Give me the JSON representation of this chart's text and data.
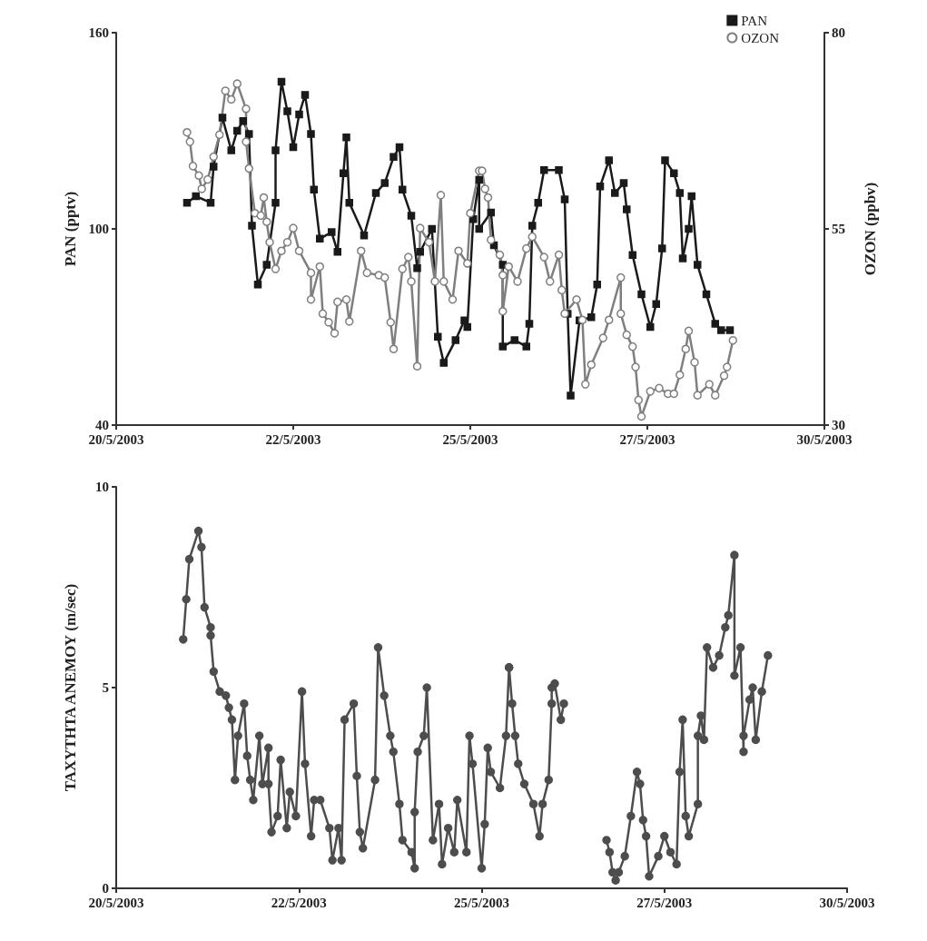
{
  "chart_data": [
    {
      "type": "line",
      "ylabel": "PAN (pptv)",
      "y2label": "OZON (ppbv)",
      "xlim": [
        "2003-05-20",
        "2003-05-30"
      ],
      "xticks": [
        {
          "value": "2003-05-20",
          "label": "20/5/2003"
        },
        {
          "value": "2003-05-22T12:00",
          "label": "22/5/2003"
        },
        {
          "value": "2003-05-25",
          "label": "25/5/2003"
        },
        {
          "value": "2003-05-27T12:00",
          "label": "27/5/2003"
        },
        {
          "value": "2003-05-30",
          "label": "30/5/2003"
        }
      ],
      "ylim": [
        40,
        160
      ],
      "yticks": [
        40,
        100,
        160
      ],
      "y2lim": [
        30,
        80
      ],
      "y2ticks": [
        30,
        55,
        80
      ],
      "grid": false,
      "legend": "top right",
      "line_style": "solid",
      "series": [
        {
          "name": "PAN",
          "color": "#1a1a1a",
          "marker": "square",
          "x": [
            "2003-05-21T00:00",
            "2003-05-21T03:00",
            "2003-05-21T08:00",
            "2003-05-21T09:00",
            "2003-05-21T12:00",
            "2003-05-21T15:00",
            "2003-05-21T17:00",
            "2003-05-21T19:00",
            "2003-05-21T21:00",
            "2003-05-21T22:00",
            "2003-05-22T00:00",
            "2003-05-22T03:00",
            "2003-05-22T06:00",
            "2003-05-22T06:00",
            "2003-05-22T08:00",
            "2003-05-22T10:00",
            "2003-05-22T12:00",
            "2003-05-22T14:00",
            "2003-05-22T16:00",
            "2003-05-22T18:00",
            "2003-05-22T19:00",
            "2003-05-22T21:00",
            "2003-05-23T01:00",
            "2003-05-23T03:00",
            "2003-05-23T05:00",
            "2003-05-23T06:00",
            "2003-05-23T07:00",
            "2003-05-23T12:00",
            "2003-05-23T16:00",
            "2003-05-23T19:00",
            "2003-05-23T22:00",
            "2003-05-24T00:00",
            "2003-05-24T01:00",
            "2003-05-24T04:00",
            "2003-05-24T06:00",
            "2003-05-24T07:00",
            "2003-05-24T11:00",
            "2003-05-24T13:00",
            "2003-05-24T15:00",
            "2003-05-24T19:00",
            "2003-05-24T22:00",
            "2003-05-24T23:00",
            "2003-05-25T01:00",
            "2003-05-25T03:00",
            "2003-05-25T03:00",
            "2003-05-25T07:00",
            "2003-05-25T08:00",
            "2003-05-25T11:00",
            "2003-05-25T11:00",
            "2003-05-25T15:00",
            "2003-05-25T19:00",
            "2003-05-25T20:00",
            "2003-05-25T21:00",
            "2003-05-25T23:00",
            "2003-05-26T01:00",
            "2003-05-26T06:00",
            "2003-05-26T08:00",
            "2003-05-26T09:00",
            "2003-05-26T10:00",
            "2003-05-26T13:00",
            "2003-05-26T17:00",
            "2003-05-26T19:00",
            "2003-05-26T20:00",
            "2003-05-26T23:00",
            "2003-05-27T01:00",
            "2003-05-27T04:00",
            "2003-05-27T05:00",
            "2003-05-27T07:00",
            "2003-05-27T10:00",
            "2003-05-27T13:00",
            "2003-05-27T15:00",
            "2003-05-27T17:00",
            "2003-05-27T18:00",
            "2003-05-27T21:00",
            "2003-05-27T23:00",
            "2003-05-28T00:00",
            "2003-05-28T02:00",
            "2003-05-28T03:00",
            "2003-05-28T05:00",
            "2003-05-28T08:00",
            "2003-05-28T11:00",
            "2003-05-28T13:00",
            "2003-05-28T16:00"
          ],
          "values": [
            108,
            110,
            108,
            119,
            134,
            124,
            130,
            133,
            129,
            101,
            83,
            89,
            108,
            124,
            145,
            136,
            125,
            135,
            141,
            129,
            112,
            97,
            99,
            93,
            117,
            128,
            108,
            98,
            111,
            114,
            122,
            125,
            112,
            104,
            88,
            93,
            100,
            67,
            59,
            66,
            72,
            70,
            103,
            115,
            100,
            105,
            95,
            89,
            64,
            66,
            64,
            71,
            101,
            108,
            118,
            118,
            109,
            74,
            49,
            72,
            73,
            83,
            113,
            121,
            111,
            114,
            106,
            92,
            80,
            70,
            77,
            94,
            121,
            117,
            111,
            91,
            100,
            110,
            89,
            80,
            71,
            69,
            69
          ]
        },
        {
          "name": "OZON",
          "color": "#7f7f7f",
          "marker": "circle",
          "axis": "y2",
          "x": [
            "2003-05-21T00:00",
            "2003-05-21T01:00",
            "2003-05-21T02:00",
            "2003-05-21T04:00",
            "2003-05-21T05:00",
            "2003-05-21T07:00",
            "2003-05-21T09:00",
            "2003-05-21T11:00",
            "2003-05-21T13:00",
            "2003-05-21T15:00",
            "2003-05-21T17:00",
            "2003-05-21T20:00",
            "2003-05-21T20:00",
            "2003-05-21T21:00",
            "2003-05-21T23:00",
            "2003-05-22T01:00",
            "2003-05-22T02:00",
            "2003-05-22T03:00",
            "2003-05-22T04:00",
            "2003-05-22T06:00",
            "2003-05-22T08:00",
            "2003-05-22T10:00",
            "2003-05-22T12:00",
            "2003-05-22T14:00",
            "2003-05-22T18:00",
            "2003-05-22T18:00",
            "2003-05-22T21:00",
            "2003-05-22T22:00",
            "2003-05-23T00:00",
            "2003-05-23T02:00",
            "2003-05-23T03:00",
            "2003-05-23T06:00",
            "2003-05-23T07:00",
            "2003-05-23T11:00",
            "2003-05-23T13:00",
            "2003-05-23T17:00",
            "2003-05-23T19:00",
            "2003-05-23T21:00",
            "2003-05-23T22:00",
            "2003-05-24T01:00",
            "2003-05-24T03:00",
            "2003-05-24T04:00",
            "2003-05-24T06:00",
            "2003-05-24T07:00",
            "2003-05-24T10:00",
            "2003-05-24T12:00",
            "2003-05-24T14:00",
            "2003-05-24T15:00",
            "2003-05-24T18:00",
            "2003-05-24T20:00",
            "2003-05-24T23:00",
            "2003-05-25T00:00",
            "2003-05-25T03:00",
            "2003-05-25T04:00",
            "2003-05-25T05:00",
            "2003-05-25T06:00",
            "2003-05-25T07:00",
            "2003-05-25T10:00",
            "2003-05-25T11:00",
            "2003-05-25T11:00",
            "2003-05-25T13:00",
            "2003-05-25T16:00",
            "2003-05-25T19:00",
            "2003-05-25T21:00",
            "2003-05-26T01:00",
            "2003-05-26T03:00",
            "2003-05-26T06:00",
            "2003-05-26T07:00",
            "2003-05-26T08:00",
            "2003-05-26T12:00",
            "2003-05-26T14:00",
            "2003-05-26T15:00",
            "2003-05-26T17:00",
            "2003-05-26T21:00",
            "2003-05-26T23:00",
            "2003-05-27T03:00",
            "2003-05-27T03:00",
            "2003-05-27T05:00",
            "2003-05-27T07:00",
            "2003-05-27T08:00",
            "2003-05-27T09:00",
            "2003-05-27T10:00",
            "2003-05-27T13:00",
            "2003-05-27T16:00",
            "2003-05-27T19:00",
            "2003-05-27T21:00",
            "2003-05-27T23:00",
            "2003-05-28T01:00",
            "2003-05-28T02:00",
            "2003-05-28T04:00",
            "2003-05-28T05:00",
            "2003-05-28T09:00",
            "2003-05-28T11:00",
            "2003-05-28T14:00",
            "2003-05-28T15:00",
            "2003-05-28T17:00"
          ],
          "values": [
            67.3,
            66.1,
            63,
            61.8,
            60.1,
            61.3,
            64.2,
            67,
            72.6,
            71.5,
            73.5,
            70.3,
            66.1,
            62.7,
            57,
            56.7,
            59,
            55.9,
            53.3,
            49.9,
            52.2,
            53.3,
            55.1,
            52.2,
            49.4,
            46,
            50.2,
            44.2,
            43.1,
            41.7,
            45.7,
            46,
            43.2,
            52.2,
            49.4,
            49.1,
            48.8,
            43.1,
            39.7,
            49.9,
            51.4,
            48.3,
            37.5,
            55.1,
            53.3,
            48.3,
            59.3,
            48.3,
            46,
            52.2,
            50.6,
            57,
            62.4,
            62.4,
            60.1,
            59,
            53.6,
            51.7,
            49.1,
            44.5,
            50.2,
            48.3,
            52.5,
            54,
            51.4,
            48.3,
            51.7,
            47.2,
            44.2,
            46,
            43.4,
            35.2,
            37.7,
            41.1,
            43.4,
            48.8,
            44.2,
            41.5,
            40,
            37.4,
            33.2,
            31.1,
            34.3,
            34.7,
            34,
            34,
            36.4,
            39.7,
            42,
            38,
            33.8,
            35.2,
            33.8,
            36.3,
            37.4,
            40.8
          ]
        }
      ]
    },
    {
      "type": "line",
      "ylabel": "ΤΑΧΥΤΗΤΑ ΑΝΕΜΟΥ (m/sec)",
      "xlim": [
        "2003-05-20",
        "2003-05-30"
      ],
      "xticks": [
        {
          "value": "2003-05-20",
          "label": "20/5/2003"
        },
        {
          "value": "2003-05-22T12:00",
          "label": "22/5/2003"
        },
        {
          "value": "2003-05-25",
          "label": "25/5/2003"
        },
        {
          "value": "2003-05-27T12:00",
          "label": "27/5/2003"
        },
        {
          "value": "2003-05-30",
          "label": "30/5/2003"
        }
      ],
      "ylim": [
        0,
        10
      ],
      "yticks": [
        0,
        5,
        10
      ],
      "grid": false,
      "legend": false,
      "line_style": "solid",
      "series": [
        {
          "color": "#4d4d4d",
          "marker": "circle",
          "x": [
            "2003-05-20T22:00",
            "2003-05-20T23:00",
            "2003-05-21T00:00",
            "2003-05-21T03:00",
            "2003-05-21T04:00",
            "2003-05-21T05:00",
            "2003-05-21T07:00",
            "2003-05-21T07:00",
            "2003-05-21T08:00",
            "2003-05-21T10:00",
            "2003-05-21T12:00",
            "2003-05-21T13:00",
            "2003-05-21T14:00",
            "2003-05-21T15:00",
            "2003-05-21T16:00",
            "2003-05-21T18:00",
            "2003-05-21T19:00",
            "2003-05-21T20:00",
            "2003-05-21T21:00",
            "2003-05-21T23:00",
            "2003-05-22T00:00",
            "2003-05-22T02:00",
            "2003-05-22T02:00",
            "2003-05-22T03:00",
            "2003-05-22T05:00",
            "2003-05-22T06:00",
            "2003-05-22T08:00",
            "2003-05-22T09:00",
            "2003-05-22T11:00",
            "2003-05-22T13:00",
            "2003-05-22T14:00",
            "2003-05-22T16:00",
            "2003-05-22T17:00",
            "2003-05-22T19:00",
            "2003-05-22T22:00",
            "2003-05-22T23:00",
            "2003-05-23T01:00",
            "2003-05-23T02:00",
            "2003-05-23T03:00",
            "2003-05-23T06:00",
            "2003-05-23T07:00",
            "2003-05-23T08:00",
            "2003-05-23T09:00",
            "2003-05-23T13:00",
            "2003-05-23T14:00",
            "2003-05-23T16:00",
            "2003-05-23T18:00",
            "2003-05-23T19:00",
            "2003-05-23T21:00",
            "2003-05-23T22:00",
            "2003-05-24T01:00",
            "2003-05-24T02:00",
            "2003-05-24T02:00",
            "2003-05-24T03:00",
            "2003-05-24T05:00",
            "2003-05-24T06:00",
            "2003-05-24T08:00",
            "2003-05-24T10:00",
            "2003-05-24T11:00",
            "2003-05-24T13:00",
            "2003-05-24T15:00",
            "2003-05-24T16:00",
            "2003-05-24T19:00",
            "2003-05-24T20:00",
            "2003-05-24T21:00",
            "2003-05-25T00:00",
            "2003-05-25T01:00",
            "2003-05-25T02:00",
            "2003-05-25T03:00",
            "2003-05-25T06:00",
            "2003-05-25T08:00",
            "2003-05-25T09:00",
            "2003-05-25T09:00",
            "2003-05-25T10:00",
            "2003-05-25T11:00",
            "2003-05-25T12:00",
            "2003-05-25T14:00",
            "2003-05-25T17:00",
            "2003-05-25T19:00",
            "2003-05-25T20:00",
            "2003-05-25T22:00",
            "2003-05-25T23:00",
            "2003-05-25T23:00",
            "2003-05-26T00:00",
            "2003-05-26T02:00",
            "2003-05-26T03:00",
            "2003-05-26T10:00",
            "2003-05-26T17:00",
            "2003-05-26T18:00",
            "2003-05-26T19:00",
            "2003-05-26T20:00",
            "2003-05-26T21:00",
            "2003-05-26T23:00",
            "2003-05-27T01:00",
            "2003-05-27T03:00",
            "2003-05-27T04:00",
            "2003-05-27T05:00",
            "2003-05-27T06:00",
            "2003-05-27T07:00",
            "2003-05-27T10:00",
            "2003-05-27T12:00",
            "2003-05-27T14:00",
            "2003-05-27T16:00",
            "2003-05-27T17:00",
            "2003-05-27T18:00",
            "2003-05-27T19:00",
            "2003-05-27T20:00",
            "2003-05-27T23:00",
            "2003-05-27T23:00",
            "2003-05-28T00:00",
            "2003-05-28T01:00",
            "2003-05-28T02:00",
            "2003-05-28T04:00",
            "2003-05-28T06:00",
            "2003-05-28T08:00",
            "2003-05-28T09:00",
            "2003-05-28T11:00",
            "2003-05-28T11:00",
            "2003-05-28T13:00",
            "2003-05-28T14:00",
            "2003-05-28T14:00",
            "2003-05-28T16:00",
            "2003-05-28T17:00",
            "2003-05-28T18:00",
            "2003-05-28T20:00",
            "2003-05-28T22:00"
          ],
          "values": [
            6.2,
            7.2,
            8.2,
            8.9,
            8.5,
            7,
            6.5,
            6.3,
            5.4,
            4.9,
            4.8,
            4.5,
            4.2,
            2.7,
            3.8,
            4.6,
            3.3,
            2.7,
            2.2,
            3.8,
            2.6,
            3.5,
            2.6,
            1.4,
            1.8,
            3.2,
            1.5,
            2.4,
            1.8,
            4.9,
            3.1,
            1.3,
            2.2,
            2.2,
            1.5,
            0.7,
            1.5,
            0.7,
            4.2,
            4.6,
            2.8,
            1.4,
            1,
            2.7,
            6,
            4.8,
            3.8,
            3.4,
            2.1,
            1.2,
            0.9,
            0.5,
            1.9,
            3.4,
            3.8,
            5,
            1.2,
            2.1,
            0.6,
            1.5,
            0.9,
            2.2,
            0.9,
            3.8,
            3.1,
            0.5,
            1.6,
            3.5,
            2.9,
            2.5,
            3.8,
            5.5,
            5.5,
            4.6,
            3.8,
            3.1,
            2.6,
            2.1,
            1.3,
            2.1,
            2.7,
            4.6,
            5,
            5.1,
            4.2,
            4.6,
            null,
            1.2,
            0.9,
            0.4,
            0.2,
            0.4,
            0.8,
            1.8,
            2.9,
            2.6,
            1.7,
            1.3,
            0.3,
            0.8,
            1.3,
            0.9,
            0.6,
            2.9,
            4.2,
            1.8,
            1.3,
            2.1,
            3.8,
            4.3,
            3.7,
            6,
            5.5,
            5.8,
            6.5,
            6.8,
            8.3,
            5.3,
            6,
            3.4,
            3.8,
            4.7,
            5,
            3.7,
            4.9,
            5.8
          ]
        }
      ]
    }
  ]
}
